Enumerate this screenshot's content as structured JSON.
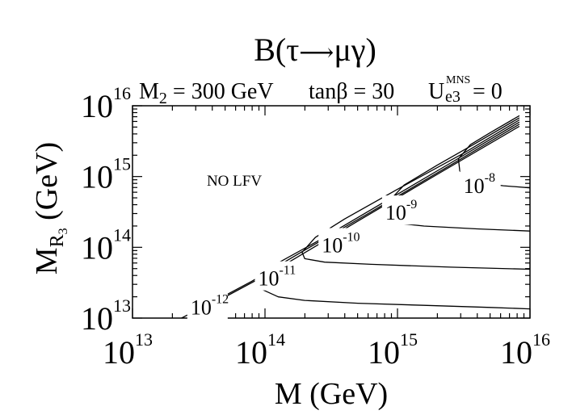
{
  "chart_data": {
    "type": "line",
    "title": {
      "base": "B(",
      "tau": "τ",
      "arrow": "⟶",
      "mu": "μ",
      "gamma": "γ",
      "close": ")"
    },
    "subtitle": {
      "m2": {
        "M": "M",
        "sub": "2",
        "rest": " = 300 GeV"
      },
      "tanb": {
        "pre": "tan",
        "beta": "β",
        "rest": " = 30"
      },
      "ue3": {
        "U": "U",
        "sup": "MNS",
        "sub": "e3",
        "rest": " = 0"
      }
    },
    "xlabel": "M (GeV)",
    "ylabel": {
      "M": "M",
      "sub": "R",
      "subsub": "3",
      "rest": " (GeV)"
    },
    "x_scale": "log",
    "y_scale": "log",
    "xlim": [
      10000000000000.0,
      1e+16
    ],
    "ylim": [
      10000000000000.0,
      1e+16
    ],
    "x_ticks": [
      {
        "base": "10",
        "exp": "13",
        "value": 13
      },
      {
        "base": "10",
        "exp": "14",
        "value": 14
      },
      {
        "base": "10",
        "exp": "15",
        "value": 15
      },
      {
        "base": "10",
        "exp": "16",
        "value": 16
      }
    ],
    "y_ticks": [
      {
        "base": "10",
        "exp": "13",
        "value": 13
      },
      {
        "base": "10",
        "exp": "14",
        "value": 14
      },
      {
        "base": "10",
        "exp": "15",
        "value": 15
      },
      {
        "base": "10",
        "exp": "16",
        "value": 16
      }
    ],
    "grid": false,
    "region_label": "NO LFV",
    "series": [
      {
        "label": {
          "base": "10",
          "exp": "-8"
        },
        "label_at": [
          15.62,
          14.77
        ],
        "points": [
          [
            15.92,
            15.86
          ],
          [
            15.7,
            15.62
          ],
          [
            15.55,
            15.45
          ],
          [
            15.46,
            15.25
          ],
          [
            15.47,
            15.08
          ],
          [
            15.54,
            14.97
          ],
          [
            15.62,
            14.91
          ],
          [
            15.8,
            14.87
          ],
          [
            16.0,
            14.84
          ]
        ]
      },
      {
        "label": {
          "base": "10",
          "exp": "-9"
        },
        "label_at": [
          15.03,
          14.39
        ],
        "points": [
          [
            15.92,
            15.83
          ],
          [
            15.6,
            15.48
          ],
          [
            15.3,
            15.16
          ],
          [
            15.05,
            14.88
          ],
          [
            14.92,
            14.62
          ],
          [
            14.93,
            14.43
          ],
          [
            15.0,
            14.34
          ],
          [
            15.2,
            14.3
          ],
          [
            15.6,
            14.26
          ],
          [
            16.0,
            14.23
          ]
        ]
      },
      {
        "label": {
          "base": "10",
          "exp": "-10"
        },
        "label_at": [
          14.55,
          13.93
        ],
        "points": [
          [
            15.92,
            15.8
          ],
          [
            15.5,
            15.33
          ],
          [
            15.0,
            14.82
          ],
          [
            14.6,
            14.4
          ],
          [
            14.38,
            14.14
          ],
          [
            14.28,
            13.93
          ],
          [
            14.3,
            13.84
          ],
          [
            14.45,
            13.79
          ],
          [
            14.8,
            13.76
          ],
          [
            15.4,
            13.72
          ],
          [
            16.0,
            13.69
          ]
        ]
      },
      {
        "label": {
          "base": "10",
          "exp": "-11"
        },
        "label_at": [
          14.07,
          13.46
        ],
        "points": [
          [
            15.92,
            15.77
          ],
          [
            15.4,
            15.19
          ],
          [
            14.9,
            14.64
          ],
          [
            14.4,
            14.09
          ],
          [
            14.1,
            13.78
          ],
          [
            13.96,
            13.57
          ],
          [
            13.96,
            13.42
          ],
          [
            14.1,
            13.3
          ],
          [
            14.3,
            13.25
          ],
          [
            14.7,
            13.21
          ],
          [
            15.2,
            13.18
          ],
          [
            15.7,
            13.15
          ],
          [
            16.0,
            13.13
          ]
        ]
      },
      {
        "label": {
          "base": "10",
          "exp": "-12"
        },
        "label_at": [
          13.56,
          13.05
        ],
        "points": [
          [
            15.92,
            15.74
          ],
          [
            15.4,
            15.16
          ],
          [
            14.8,
            14.5
          ],
          [
            14.3,
            13.96
          ],
          [
            13.9,
            13.52
          ],
          [
            13.7,
            13.32
          ],
          [
            13.56,
            13.14
          ],
          [
            13.5,
            13.08
          ],
          [
            13.46,
            13.0
          ]
        ]
      },
      {
        "label": null,
        "label_at": null,
        "points": [
          [
            15.92,
            15.71
          ],
          [
            15.3,
            15.03
          ],
          [
            14.7,
            14.37
          ],
          [
            14.1,
            13.7
          ],
          [
            13.6,
            13.2
          ],
          [
            13.4,
            13.03
          ],
          [
            13.37,
            13.0
          ]
        ]
      }
    ]
  }
}
